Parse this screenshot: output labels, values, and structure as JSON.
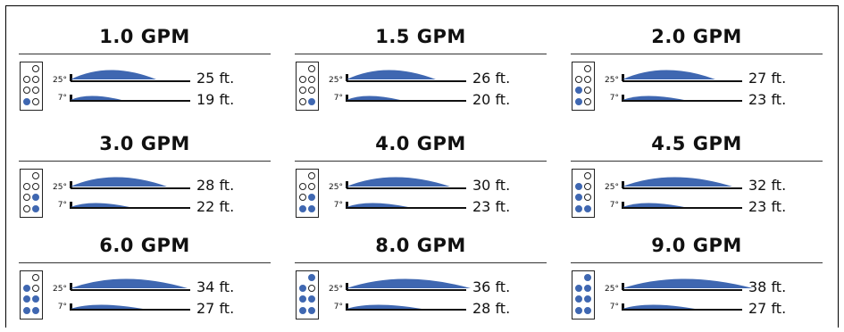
{
  "accent_color": "#3f67b1",
  "panels": [
    {
      "title": "1.0 GPM",
      "nozzle": [
        [
          0,
          0,
          0
        ],
        [
          0,
          0,
          0
        ],
        [
          0,
          0,
          0
        ],
        [
          1,
          0,
          0
        ]
      ],
      "high": {
        "angle": "25°",
        "distance": "25 ft."
      },
      "low": {
        "angle": "7°",
        "distance": "19 ft."
      }
    },
    {
      "title": "1.5 GPM",
      "nozzle": [
        [
          0,
          0,
          0
        ],
        [
          0,
          0,
          0
        ],
        [
          0,
          0,
          0
        ],
        [
          0,
          1,
          0
        ]
      ],
      "high": {
        "angle": "25°",
        "distance": "26 ft."
      },
      "low": {
        "angle": "7°",
        "distance": "20 ft."
      }
    },
    {
      "title": "2.0 GPM",
      "nozzle": [
        [
          0,
          0,
          0
        ],
        [
          0,
          0,
          0
        ],
        [
          1,
          0,
          0
        ],
        [
          1,
          0,
          0
        ]
      ],
      "high": {
        "angle": "25°",
        "distance": "27 ft."
      },
      "low": {
        "angle": "7°",
        "distance": "23 ft."
      }
    },
    {
      "title": "3.0 GPM",
      "nozzle": [
        [
          0,
          0,
          0
        ],
        [
          0,
          0,
          0
        ],
        [
          0,
          1,
          0
        ],
        [
          0,
          1,
          0
        ]
      ],
      "high": {
        "angle": "25°",
        "distance": "28 ft."
      },
      "low": {
        "angle": "7°",
        "distance": "22 ft."
      }
    },
    {
      "title": "4.0 GPM",
      "nozzle": [
        [
          0,
          0,
          0
        ],
        [
          0,
          0,
          0
        ],
        [
          0,
          1,
          0
        ],
        [
          1,
          1,
          0
        ]
      ],
      "high": {
        "angle": "25°",
        "distance": "30 ft."
      },
      "low": {
        "angle": "7°",
        "distance": "23 ft."
      }
    },
    {
      "title": "4.5 GPM",
      "nozzle": [
        [
          0,
          0,
          0
        ],
        [
          1,
          0,
          0
        ],
        [
          1,
          0,
          0
        ],
        [
          1,
          1,
          0
        ]
      ],
      "high": {
        "angle": "25°",
        "distance": "32 ft."
      },
      "low": {
        "angle": "7°",
        "distance": "23 ft."
      }
    },
    {
      "title": "6.0 GPM",
      "nozzle": [
        [
          0,
          0,
          0
        ],
        [
          1,
          0,
          0
        ],
        [
          1,
          1,
          0
        ],
        [
          1,
          1,
          0
        ]
      ],
      "high": {
        "angle": "25°",
        "distance": "34 ft."
      },
      "low": {
        "angle": "7°",
        "distance": "27 ft."
      }
    },
    {
      "title": "8.0 GPM",
      "nozzle": [
        [
          0,
          1,
          0
        ],
        [
          1,
          0,
          0
        ],
        [
          1,
          1,
          0
        ],
        [
          1,
          1,
          0
        ]
      ],
      "high": {
        "angle": "25°",
        "distance": "36 ft."
      },
      "low": {
        "angle": "7°",
        "distance": "28 ft."
      }
    },
    {
      "title": "9.0 GPM",
      "nozzle": [
        [
          0,
          1,
          0
        ],
        [
          1,
          1,
          0
        ],
        [
          1,
          1,
          0
        ],
        [
          1,
          1,
          0
        ]
      ],
      "high": {
        "angle": "25°",
        "distance": "38 ft."
      },
      "low": {
        "angle": "7°",
        "distance": "27 ft."
      }
    }
  ]
}
